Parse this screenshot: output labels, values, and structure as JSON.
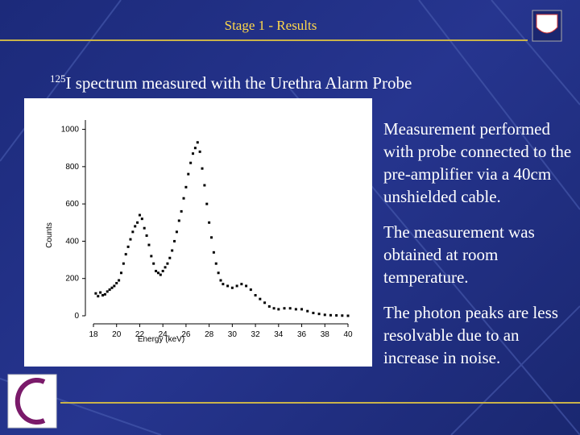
{
  "slide": {
    "title": "Stage 1 - Results",
    "heading": {
      "superscript": "125",
      "text": "I spectrum measured with the Urethra Alarm Probe"
    },
    "paragraphs": [
      "Measurement performed with probe connected to the pre-amplifier via a 40cm unshielded cable.",
      "The measurement was obtained at room temperature.",
      "The photon peaks are less resolvable due to an increase in noise."
    ]
  },
  "chart_data": {
    "type": "scatter",
    "xlabel": "Energy (keV)",
    "ylabel": "Counts",
    "color": "#000000",
    "x": [
      18.2,
      18.4,
      18.6,
      18.8,
      19.0,
      19.2,
      19.4,
      19.6,
      19.8,
      20.0,
      20.2,
      20.4,
      20.6,
      20.8,
      21.0,
      21.2,
      21.4,
      21.6,
      21.8,
      22.0,
      22.2,
      22.4,
      22.6,
      22.8,
      23.0,
      23.2,
      23.4,
      23.6,
      23.8,
      24.0,
      24.2,
      24.4,
      24.6,
      24.8,
      25.0,
      25.2,
      25.4,
      25.6,
      25.8,
      26.0,
      26.2,
      26.4,
      26.6,
      26.8,
      27.0,
      27.2,
      27.4,
      27.6,
      27.8,
      28.0,
      28.2,
      28.4,
      28.6,
      28.8,
      29.0,
      29.2,
      29.6,
      30.0,
      30.4,
      30.8,
      31.2,
      31.6,
      32.0,
      32.4,
      32.8,
      33.2,
      33.6,
      34.0,
      34.5,
      35.0,
      35.5,
      36.0,
      36.5,
      37.0,
      37.5,
      38.0,
      38.5,
      39.0,
      39.5,
      40.0
    ],
    "values": [
      120,
      105,
      125,
      110,
      115,
      130,
      140,
      150,
      160,
      175,
      190,
      230,
      280,
      330,
      370,
      410,
      450,
      480,
      500,
      540,
      520,
      470,
      430,
      380,
      320,
      280,
      240,
      230,
      220,
      240,
      260,
      280,
      310,
      350,
      400,
      450,
      510,
      560,
      630,
      690,
      760,
      820,
      870,
      900,
      930,
      880,
      790,
      700,
      600,
      500,
      420,
      340,
      280,
      230,
      190,
      170,
      160,
      150,
      160,
      170,
      160,
      140,
      110,
      90,
      70,
      50,
      40,
      35,
      40,
      40,
      35,
      35,
      25,
      15,
      10,
      5,
      3,
      2,
      1,
      0
    ],
    "xlim": [
      18,
      40
    ],
    "xticks": [
      18,
      20,
      22,
      24,
      26,
      28,
      30,
      32,
      34,
      36,
      38,
      40
    ],
    "ylim": [
      0,
      1050
    ],
    "yticks": [
      0,
      200,
      400,
      600,
      800,
      1000
    ]
  }
}
